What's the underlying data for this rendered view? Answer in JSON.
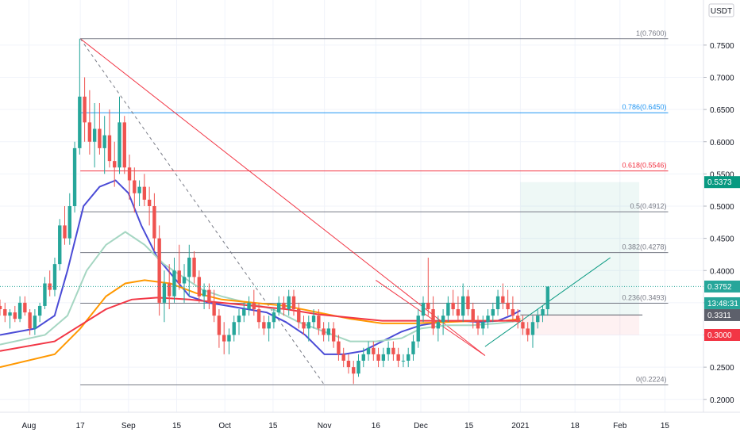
{
  "chart_data": {
    "type": "candlestick",
    "currency": "USDT",
    "y_axis": {
      "range": [
        0.18,
        0.82
      ],
      "ticks": [
        "0.7500",
        "0.7000",
        "0.6500",
        "0.6000",
        "0.5500",
        "0.5000",
        "0.4500",
        "0.4000",
        "0.3500",
        "0.3000",
        "0.2500",
        "0.2000"
      ],
      "tick_values": [
        0.75,
        0.7,
        0.65,
        0.6,
        0.55,
        0.5,
        0.45,
        0.4,
        0.35,
        0.3,
        0.25,
        0.2
      ]
    },
    "x_axis": {
      "labels": [
        "Aug",
        "17",
        "Sep",
        "15",
        "Oct",
        "15",
        "Nov",
        "16",
        "Dec",
        "15",
        "2021",
        "18",
        "Feb",
        "15"
      ],
      "label_days": [
        0,
        16,
        31,
        46,
        61,
        76,
        92,
        108,
        122,
        137,
        153,
        170,
        184,
        198
      ],
      "range_days": [
        -9,
        210
      ]
    },
    "fib": [
      {
        "label": "1(0.7600)",
        "value": 0.76,
        "color": "#787b86"
      },
      {
        "label": "0.786(0.6450)",
        "value": 0.645,
        "color": "#2196f3"
      },
      {
        "label": "0.618(0.5546)",
        "value": 0.5546,
        "color": "#f23645"
      },
      {
        "label": "0.5(0.4912)",
        "value": 0.4912,
        "color": "#787b86"
      },
      {
        "label": "0.382(0.4278)",
        "value": 0.4278,
        "color": "#787b86"
      },
      {
        "label": "0.236(0.3493)",
        "value": 0.3493,
        "color": "#787b86"
      },
      {
        "label": "0(0.2224)",
        "value": 0.2224,
        "color": "#787b86"
      }
    ],
    "price_tags": [
      {
        "label": "0.5373",
        "value": 0.5373,
        "bg": "#089981"
      },
      {
        "label": "0.3752",
        "value": 0.3752,
        "bg": "#26a69a"
      },
      {
        "label": "13:48:31",
        "value": 0.3493,
        "bg": "#26a69a"
      },
      {
        "label": "0.3311",
        "value": 0.3311,
        "bg": "#5d606b"
      },
      {
        "label": "0.3000",
        "value": 0.3,
        "bg": "#f23645"
      }
    ],
    "candles_ohlc": [
      [
        0.345,
        0.355,
        0.33,
        0.34
      ],
      [
        0.34,
        0.35,
        0.32,
        0.33
      ],
      [
        0.33,
        0.34,
        0.31,
        0.335
      ],
      [
        0.335,
        0.345,
        0.32,
        0.325
      ],
      [
        0.325,
        0.36,
        0.32,
        0.35
      ],
      [
        0.35,
        0.36,
        0.33,
        0.335
      ],
      [
        0.335,
        0.34,
        0.3,
        0.31
      ],
      [
        0.31,
        0.34,
        0.3,
        0.33
      ],
      [
        0.33,
        0.35,
        0.32,
        0.345
      ],
      [
        0.345,
        0.39,
        0.34,
        0.38
      ],
      [
        0.38,
        0.4,
        0.36,
        0.37
      ],
      [
        0.37,
        0.42,
        0.36,
        0.41
      ],
      [
        0.41,
        0.48,
        0.4,
        0.47
      ],
      [
        0.47,
        0.5,
        0.44,
        0.45
      ],
      [
        0.45,
        0.52,
        0.44,
        0.5
      ],
      [
        0.5,
        0.6,
        0.49,
        0.59
      ],
      [
        0.59,
        0.76,
        0.58,
        0.67
      ],
      [
        0.67,
        0.7,
        0.6,
        0.63
      ],
      [
        0.63,
        0.68,
        0.58,
        0.6
      ],
      [
        0.6,
        0.66,
        0.56,
        0.62
      ],
      [
        0.62,
        0.66,
        0.58,
        0.59
      ],
      [
        0.59,
        0.64,
        0.55,
        0.61
      ],
      [
        0.61,
        0.65,
        0.56,
        0.57
      ],
      [
        0.57,
        0.6,
        0.53,
        0.56
      ],
      [
        0.56,
        0.67,
        0.55,
        0.63
      ],
      [
        0.63,
        0.64,
        0.55,
        0.56
      ],
      [
        0.56,
        0.58,
        0.51,
        0.54
      ],
      [
        0.54,
        0.56,
        0.49,
        0.52
      ],
      [
        0.52,
        0.54,
        0.5,
        0.53
      ],
      [
        0.53,
        0.55,
        0.5,
        0.51
      ],
      [
        0.51,
        0.53,
        0.47,
        0.5
      ],
      [
        0.5,
        0.52,
        0.43,
        0.45
      ],
      [
        0.45,
        0.47,
        0.33,
        0.35
      ],
      [
        0.35,
        0.4,
        0.32,
        0.38
      ],
      [
        0.38,
        0.41,
        0.34,
        0.36
      ],
      [
        0.36,
        0.42,
        0.35,
        0.4
      ],
      [
        0.4,
        0.44,
        0.37,
        0.38
      ],
      [
        0.38,
        0.41,
        0.35,
        0.39
      ],
      [
        0.39,
        0.44,
        0.36,
        0.42
      ],
      [
        0.42,
        0.43,
        0.38,
        0.39
      ],
      [
        0.39,
        0.4,
        0.35,
        0.36
      ],
      [
        0.36,
        0.38,
        0.34,
        0.37
      ],
      [
        0.37,
        0.38,
        0.34,
        0.35
      ],
      [
        0.35,
        0.37,
        0.32,
        0.33
      ],
      [
        0.33,
        0.34,
        0.28,
        0.3
      ],
      [
        0.3,
        0.32,
        0.27,
        0.29
      ],
      [
        0.29,
        0.31,
        0.27,
        0.3
      ],
      [
        0.3,
        0.33,
        0.29,
        0.32
      ],
      [
        0.32,
        0.34,
        0.3,
        0.33
      ],
      [
        0.33,
        0.35,
        0.32,
        0.34
      ],
      [
        0.34,
        0.36,
        0.33,
        0.35
      ],
      [
        0.35,
        0.37,
        0.33,
        0.34
      ],
      [
        0.34,
        0.35,
        0.31,
        0.32
      ],
      [
        0.32,
        0.33,
        0.3,
        0.31
      ],
      [
        0.31,
        0.33,
        0.29,
        0.32
      ],
      [
        0.32,
        0.34,
        0.31,
        0.335
      ],
      [
        0.335,
        0.36,
        0.33,
        0.35
      ],
      [
        0.35,
        0.36,
        0.33,
        0.34
      ],
      [
        0.34,
        0.37,
        0.33,
        0.36
      ],
      [
        0.36,
        0.37,
        0.33,
        0.34
      ],
      [
        0.34,
        0.35,
        0.31,
        0.32
      ],
      [
        0.32,
        0.33,
        0.3,
        0.31
      ],
      [
        0.31,
        0.33,
        0.29,
        0.32
      ],
      [
        0.32,
        0.34,
        0.31,
        0.33
      ],
      [
        0.33,
        0.34,
        0.3,
        0.31
      ],
      [
        0.31,
        0.32,
        0.29,
        0.3
      ],
      [
        0.3,
        0.32,
        0.29,
        0.31
      ],
      [
        0.31,
        0.32,
        0.28,
        0.29
      ],
      [
        0.29,
        0.3,
        0.26,
        0.27
      ],
      [
        0.27,
        0.28,
        0.25,
        0.26
      ],
      [
        0.26,
        0.27,
        0.24,
        0.25
      ],
      [
        0.25,
        0.26,
        0.224,
        0.24
      ],
      [
        0.24,
        0.27,
        0.235,
        0.26
      ],
      [
        0.26,
        0.28,
        0.25,
        0.27
      ],
      [
        0.27,
        0.29,
        0.26,
        0.28
      ],
      [
        0.28,
        0.29,
        0.26,
        0.27
      ],
      [
        0.27,
        0.28,
        0.25,
        0.26
      ],
      [
        0.26,
        0.28,
        0.25,
        0.27
      ],
      [
        0.27,
        0.29,
        0.26,
        0.28
      ],
      [
        0.28,
        0.29,
        0.26,
        0.27
      ],
      [
        0.27,
        0.28,
        0.25,
        0.26
      ],
      [
        0.26,
        0.27,
        0.25,
        0.26
      ],
      [
        0.26,
        0.28,
        0.25,
        0.27
      ],
      [
        0.27,
        0.3,
        0.26,
        0.29
      ],
      [
        0.29,
        0.34,
        0.28,
        0.33
      ],
      [
        0.33,
        0.36,
        0.32,
        0.35
      ],
      [
        0.35,
        0.42,
        0.33,
        0.34
      ],
      [
        0.34,
        0.36,
        0.3,
        0.31
      ],
      [
        0.31,
        0.33,
        0.29,
        0.32
      ],
      [
        0.32,
        0.34,
        0.3,
        0.33
      ],
      [
        0.33,
        0.36,
        0.32,
        0.35
      ],
      [
        0.35,
        0.37,
        0.33,
        0.34
      ],
      [
        0.34,
        0.36,
        0.32,
        0.33
      ],
      [
        0.33,
        0.38,
        0.32,
        0.36
      ],
      [
        0.36,
        0.37,
        0.33,
        0.34
      ],
      [
        0.34,
        0.35,
        0.31,
        0.32
      ],
      [
        0.32,
        0.33,
        0.3,
        0.31
      ],
      [
        0.31,
        0.33,
        0.3,
        0.32
      ],
      [
        0.32,
        0.34,
        0.31,
        0.33
      ],
      [
        0.33,
        0.35,
        0.32,
        0.34
      ],
      [
        0.34,
        0.37,
        0.33,
        0.36
      ],
      [
        0.36,
        0.38,
        0.34,
        0.35
      ],
      [
        0.35,
        0.37,
        0.33,
        0.34
      ],
      [
        0.34,
        0.36,
        0.32,
        0.33
      ],
      [
        0.33,
        0.34,
        0.31,
        0.32
      ],
      [
        0.32,
        0.33,
        0.3,
        0.31
      ],
      [
        0.31,
        0.32,
        0.29,
        0.3
      ],
      [
        0.3,
        0.33,
        0.28,
        0.32
      ],
      [
        0.32,
        0.34,
        0.31,
        0.33
      ],
      [
        0.33,
        0.345,
        0.32,
        0.34
      ],
      [
        0.34,
        0.375,
        0.33,
        0.3752
      ]
    ],
    "candles_start_day": -9,
    "tf_days_per_candle": 1.55,
    "moving_averages": [
      {
        "name": "",
        "color": "#4a4bd6",
        "points": [
          [
            -9,
            0.3
          ],
          [
            2,
            0.31
          ],
          [
            8,
            0.33
          ],
          [
            12,
            0.4
          ],
          [
            17,
            0.5
          ],
          [
            22,
            0.53
          ],
          [
            27,
            0.54
          ],
          [
            31,
            0.52
          ],
          [
            35,
            0.47
          ],
          [
            40,
            0.42
          ],
          [
            45,
            0.39
          ],
          [
            50,
            0.36
          ],
          [
            56,
            0.35
          ],
          [
            62,
            0.345
          ],
          [
            68,
            0.34
          ],
          [
            74,
            0.335
          ],
          [
            80,
            0.32
          ],
          [
            86,
            0.3
          ],
          [
            92,
            0.27
          ],
          [
            98,
            0.27
          ],
          [
            104,
            0.275
          ],
          [
            110,
            0.29
          ],
          [
            116,
            0.305
          ],
          [
            122,
            0.315
          ],
          [
            128,
            0.32
          ],
          [
            134,
            0.322
          ],
          [
            140,
            0.32
          ],
          [
            146,
            0.322
          ],
          [
            150,
            0.33
          ],
          [
            153,
            0.338
          ]
        ]
      },
      {
        "name": "",
        "color": "#a5d6c2",
        "points": [
          [
            -9,
            0.285
          ],
          [
            5,
            0.3
          ],
          [
            12,
            0.33
          ],
          [
            18,
            0.4
          ],
          [
            24,
            0.44
          ],
          [
            30,
            0.46
          ],
          [
            36,
            0.44
          ],
          [
            42,
            0.41
          ],
          [
            48,
            0.39
          ],
          [
            54,
            0.37
          ],
          [
            60,
            0.36
          ],
          [
            68,
            0.35
          ],
          [
            76,
            0.34
          ],
          [
            84,
            0.32
          ],
          [
            92,
            0.305
          ],
          [
            100,
            0.29
          ],
          [
            108,
            0.29
          ],
          [
            116,
            0.295
          ],
          [
            122,
            0.31
          ],
          [
            130,
            0.315
          ],
          [
            138,
            0.315
          ],
          [
            146,
            0.318
          ],
          [
            153,
            0.322
          ]
        ]
      },
      {
        "name": "",
        "color": "#ff9800",
        "points": [
          [
            -9,
            0.25
          ],
          [
            8,
            0.27
          ],
          [
            16,
            0.31
          ],
          [
            24,
            0.36
          ],
          [
            30,
            0.38
          ],
          [
            36,
            0.385
          ],
          [
            44,
            0.38
          ],
          [
            52,
            0.365
          ],
          [
            60,
            0.355
          ],
          [
            70,
            0.35
          ],
          [
            80,
            0.345
          ],
          [
            90,
            0.335
          ],
          [
            100,
            0.325
          ],
          [
            110,
            0.318
          ],
          [
            120,
            0.318
          ],
          [
            130,
            0.32
          ],
          [
            140,
            0.322
          ],
          [
            148,
            0.322
          ],
          [
            153,
            0.325
          ]
        ]
      },
      {
        "name": "",
        "color": "#f23645",
        "points": [
          [
            -9,
            0.275
          ],
          [
            8,
            0.29
          ],
          [
            16,
            0.315
          ],
          [
            24,
            0.34
          ],
          [
            32,
            0.355
          ],
          [
            40,
            0.358
          ],
          [
            50,
            0.355
          ],
          [
            60,
            0.35
          ],
          [
            70,
            0.345
          ],
          [
            80,
            0.34
          ],
          [
            90,
            0.332
          ],
          [
            100,
            0.327
          ],
          [
            110,
            0.322
          ],
          [
            120,
            0.322
          ],
          [
            130,
            0.322
          ],
          [
            140,
            0.322
          ],
          [
            153,
            0.322
          ]
        ]
      }
    ],
    "trend_lines": [
      {
        "color": "#f23645",
        "dash": "",
        "points": [
          [
            16,
            0.76
          ],
          [
            142,
            0.268
          ]
        ]
      },
      {
        "color": "#787b86",
        "dash": "4,4",
        "points": [
          [
            16,
            0.76
          ],
          [
            92,
            0.2224
          ]
        ]
      },
      {
        "color": "#f23645",
        "dash": "",
        "points": [
          [
            108,
            0.385
          ],
          [
            142,
            0.268
          ]
        ]
      },
      {
        "color": "#089981",
        "dash": "",
        "points": [
          [
            142,
            0.282
          ],
          [
            181,
            0.42
          ]
        ]
      }
    ],
    "position": {
      "entry": 0.3311,
      "target": 0.5373,
      "stop": 0.3,
      "start_day": 153,
      "end_day": 190
    }
  }
}
